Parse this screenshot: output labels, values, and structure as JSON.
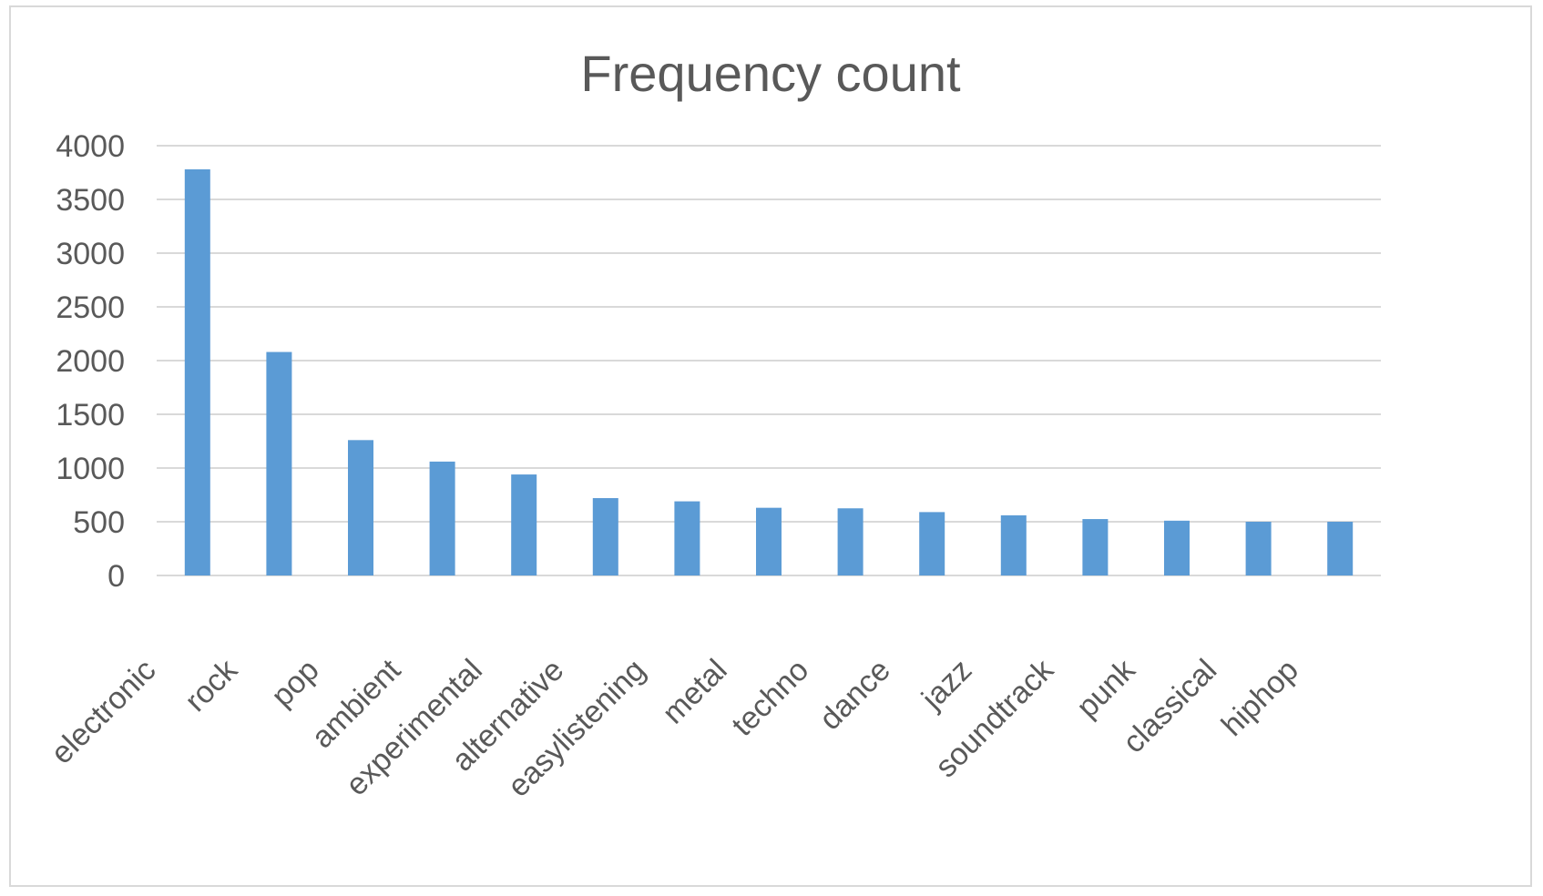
{
  "chart_data": {
    "type": "bar",
    "title": "Frequency count",
    "xlabel": "",
    "ylabel": "",
    "categories": [
      "electronic",
      "rock",
      "pop",
      "ambient",
      "experimental",
      "alternative",
      "easylistening",
      "metal",
      "techno",
      "dance",
      "jazz",
      "soundtrack",
      "punk",
      "classical",
      "hiphop"
    ],
    "values": [
      3780,
      2080,
      1260,
      1060,
      940,
      720,
      690,
      630,
      625,
      590,
      560,
      525,
      510,
      500,
      500
    ],
    "ylim": [
      0,
      4000
    ],
    "yticks": [
      "0",
      "500",
      "1000",
      "1500",
      "2000",
      "2500",
      "3000",
      "3500",
      "4000"
    ],
    "grid": true,
    "legend": "none",
    "colors": {
      "bar": "#5b9bd5",
      "text": "#595959",
      "grid": "#d9d9d9",
      "border": "#d9d9d9"
    }
  }
}
